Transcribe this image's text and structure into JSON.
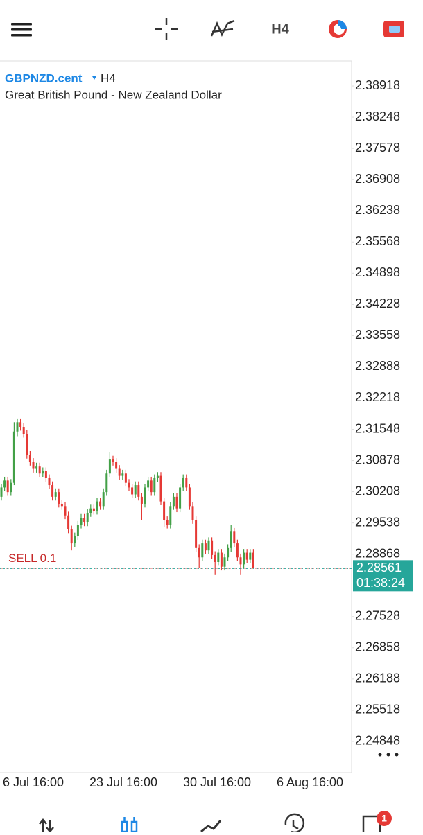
{
  "toolbar": {
    "timeframe": "H4"
  },
  "chart": {
    "type": "candlestick",
    "symbol": "GBPNZD.cent",
    "timeframe": "H4",
    "description": "Great British Pound - New Zealand Dollar",
    "ylim": [
      2.24178,
      2.39454
    ],
    "yticks": [
      2.38918,
      2.38248,
      2.37578,
      2.36908,
      2.36238,
      2.35568,
      2.34898,
      2.34228,
      2.33558,
      2.32888,
      2.32218,
      2.31548,
      2.30878,
      2.30208,
      2.29538,
      2.28868,
      2.27528,
      2.26858,
      2.26188,
      2.25518,
      2.24848
    ],
    "x_labels": [
      "6 Jul 16:00",
      "23 Jul 16:00",
      "30 Jul 16:00",
      "6 Aug 16:00"
    ],
    "candles": [
      [
        2.301,
        2.3038,
        2.3002,
        2.303
      ],
      [
        2.303,
        2.3053,
        2.3022,
        2.3045
      ],
      [
        2.3045,
        2.3053,
        2.3012,
        2.302
      ],
      [
        2.302,
        2.3048,
        2.3012,
        2.304
      ],
      [
        2.304,
        2.317,
        2.3035,
        2.315
      ],
      [
        2.315,
        2.3178,
        2.314,
        2.317
      ],
      [
        2.317,
        2.3178,
        2.3152,
        2.316
      ],
      [
        2.316,
        2.3168,
        2.3137,
        2.3145
      ],
      [
        2.3145,
        2.3153,
        2.3092,
        2.31
      ],
      [
        2.31,
        2.3108,
        2.3077,
        2.3085
      ],
      [
        2.3085,
        2.3093,
        2.3062,
        2.307
      ],
      [
        2.307,
        2.3083,
        2.3062,
        2.3075
      ],
      [
        2.3075,
        2.3083,
        2.3052,
        2.306
      ],
      [
        2.306,
        2.3073,
        2.3052,
        2.3065
      ],
      [
        2.3065,
        2.3073,
        2.3042,
        2.305
      ],
      [
        2.305,
        2.3058,
        2.3027,
        2.3035
      ],
      [
        2.3035,
        2.3043,
        2.3002,
        2.301
      ],
      [
        2.301,
        2.3028,
        2.3002,
        2.302
      ],
      [
        2.302,
        2.3028,
        2.2987,
        2.2995
      ],
      [
        2.2995,
        2.3003,
        2.2982,
        2.299
      ],
      [
        2.299,
        2.2998,
        2.2962,
        2.297
      ],
      [
        2.297,
        2.2978,
        2.2932,
        2.294
      ],
      [
        2.294,
        2.2948,
        2.2895,
        2.291
      ],
      [
        2.291,
        2.2933,
        2.2902,
        2.2925
      ],
      [
        2.2925,
        2.2958,
        2.2917,
        2.295
      ],
      [
        2.295,
        2.2973,
        2.2942,
        2.2965
      ],
      [
        2.2965,
        2.2973,
        2.2947,
        2.2955
      ],
      [
        2.2955,
        2.2983,
        2.2947,
        2.2975
      ],
      [
        2.2975,
        2.2993,
        2.2967,
        2.2985
      ],
      [
        2.2985,
        2.2993,
        2.2972,
        2.298
      ],
      [
        2.298,
        2.3008,
        2.2972,
        2.3
      ],
      [
        2.3,
        2.3008,
        2.2982,
        2.299
      ],
      [
        2.299,
        2.3028,
        2.2982,
        2.302
      ],
      [
        2.302,
        2.3068,
        2.3012,
        2.306
      ],
      [
        2.306,
        2.3105,
        2.3052,
        2.309
      ],
      [
        2.309,
        2.3098,
        2.3077,
        2.3085
      ],
      [
        2.3085,
        2.3093,
        2.3062,
        2.307
      ],
      [
        2.307,
        2.3078,
        2.3047,
        2.3055
      ],
      [
        2.3055,
        2.3068,
        2.3047,
        2.306
      ],
      [
        2.306,
        2.3068,
        2.3032,
        2.304
      ],
      [
        2.304,
        2.3048,
        2.3022,
        2.303
      ],
      [
        2.303,
        2.3038,
        2.3007,
        2.3015
      ],
      [
        2.3015,
        2.3043,
        2.3007,
        2.3035
      ],
      [
        2.3035,
        2.3043,
        2.3002,
        2.301
      ],
      [
        2.301,
        2.3018,
        2.296,
        2.2995
      ],
      [
        2.2995,
        2.3038,
        2.2987,
        2.303
      ],
      [
        2.303,
        2.3053,
        2.3022,
        2.3045
      ],
      [
        2.3045,
        2.3053,
        2.3012,
        2.302
      ],
      [
        2.302,
        2.3058,
        2.3012,
        2.305
      ],
      [
        2.305,
        2.3063,
        2.3042,
        2.3055
      ],
      [
        2.3055,
        2.3063,
        2.2992,
        2.3
      ],
      [
        2.3,
        2.3008,
        2.2945,
        2.296
      ],
      [
        2.296,
        2.2968,
        2.2942,
        2.295
      ],
      [
        2.295,
        2.2998,
        2.2942,
        2.299
      ],
      [
        2.299,
        2.3018,
        2.2982,
        2.301
      ],
      [
        2.301,
        2.3018,
        2.2977,
        2.2985
      ],
      [
        2.2985,
        2.3038,
        2.2977,
        2.303
      ],
      [
        2.303,
        2.3058,
        2.3022,
        2.305
      ],
      [
        2.305,
        2.3058,
        2.3022,
        2.303
      ],
      [
        2.303,
        2.3038,
        2.2982,
        2.299
      ],
      [
        2.299,
        2.2998,
        2.2952,
        2.296
      ],
      [
        2.296,
        2.2968,
        2.2892,
        2.29
      ],
      [
        2.29,
        2.2908,
        2.2857,
        2.288
      ],
      [
        2.288,
        2.2918,
        2.2872,
        2.291
      ],
      [
        2.291,
        2.2918,
        2.2887,
        2.2895
      ],
      [
        2.2895,
        2.2923,
        2.2887,
        2.2915
      ],
      [
        2.2915,
        2.2923,
        2.2877,
        2.2885
      ],
      [
        2.2885,
        2.2893,
        2.2842,
        2.287
      ],
      [
        2.287,
        2.2898,
        2.2862,
        2.289
      ],
      [
        2.289,
        2.2898,
        2.2852,
        2.286
      ],
      [
        2.286,
        2.2888,
        2.2852,
        2.288
      ],
      [
        2.288,
        2.2908,
        2.2872,
        2.29
      ],
      [
        2.29,
        2.295,
        2.2892,
        2.2935
      ],
      [
        2.2935,
        2.2943,
        2.2902,
        2.291
      ],
      [
        2.291,
        2.2918,
        2.2872,
        2.288
      ],
      [
        2.288,
        2.2888,
        2.2842,
        2.2865
      ],
      [
        2.2865,
        2.2898,
        2.2857,
        2.289
      ],
      [
        2.289,
        2.2898,
        2.2867,
        2.2875
      ],
      [
        2.2875,
        2.2898,
        2.2867,
        2.289
      ],
      [
        2.289,
        2.2898,
        2.28561,
        2.28561
      ]
    ],
    "up_color": "#43a047",
    "down_color": "#e53935",
    "order": {
      "label": "SELL 0.1",
      "price": 2.2857,
      "color": "#c62828"
    },
    "bid": {
      "price": 2.28561,
      "timer": "01:38:24",
      "color": "#26a69a"
    }
  },
  "bottom_nav": {
    "badge": 1
  }
}
